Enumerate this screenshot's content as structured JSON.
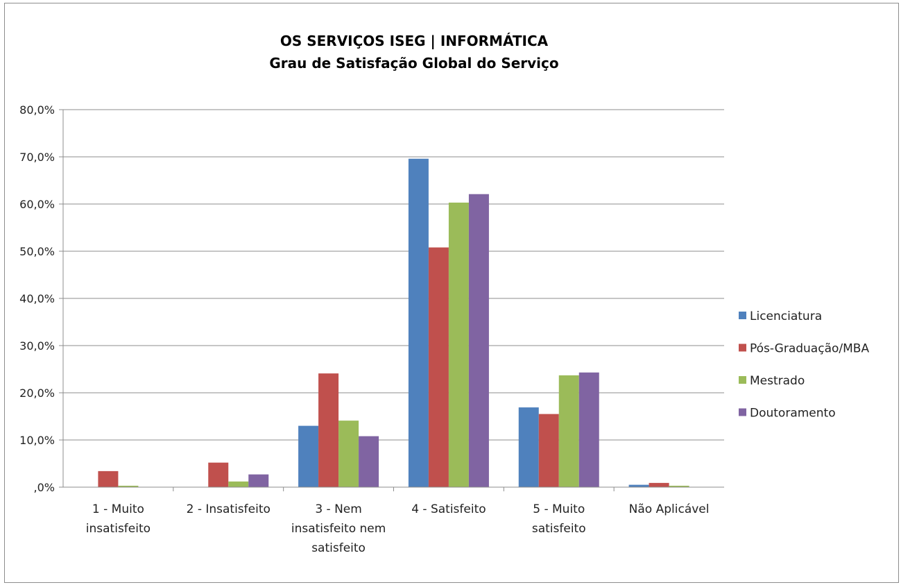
{
  "chart_data": {
    "type": "bar",
    "title": "OS SERVIÇOS ISEG  | INFORMÁTICA",
    "subtitle": "Grau de Satisfação Global do Serviço",
    "categories": [
      [
        "1 - Muito",
        "insatisfeito"
      ],
      [
        "2 - Insatisfeito"
      ],
      [
        "3 - Nem",
        "insatisfeito nem",
        "satisfeito"
      ],
      [
        "4 - Satisfeito"
      ],
      [
        "5 - Muito",
        "satisfeito"
      ],
      [
        "Não Aplicável"
      ]
    ],
    "series": [
      {
        "name": "Licenciatura",
        "color": "#4f81bd",
        "values": [
          0.0,
          0.0,
          13.0,
          69.6,
          16.9,
          0.5
        ]
      },
      {
        "name": "Pós-Graduação/MBA",
        "color": "#c0504d",
        "values": [
          3.4,
          5.2,
          24.1,
          50.8,
          15.5,
          0.9
        ]
      },
      {
        "name": "Mestrado",
        "color": "#9bbb59",
        "values": [
          0.3,
          1.2,
          14.1,
          60.3,
          23.7,
          0.3
        ]
      },
      {
        "name": "Doutoramento",
        "color": "#8064a2",
        "values": [
          0.0,
          2.7,
          10.8,
          62.1,
          24.3,
          0.0
        ]
      }
    ],
    "yticks": [
      "80,0%",
      "70,0%",
      "60,0%",
      "50,0%",
      "40,0%",
      "30,0%",
      "20,0%",
      "10,0%",
      ",0%"
    ],
    "ylim": [
      0,
      80
    ],
    "grid": true,
    "legend_position": "right"
  }
}
